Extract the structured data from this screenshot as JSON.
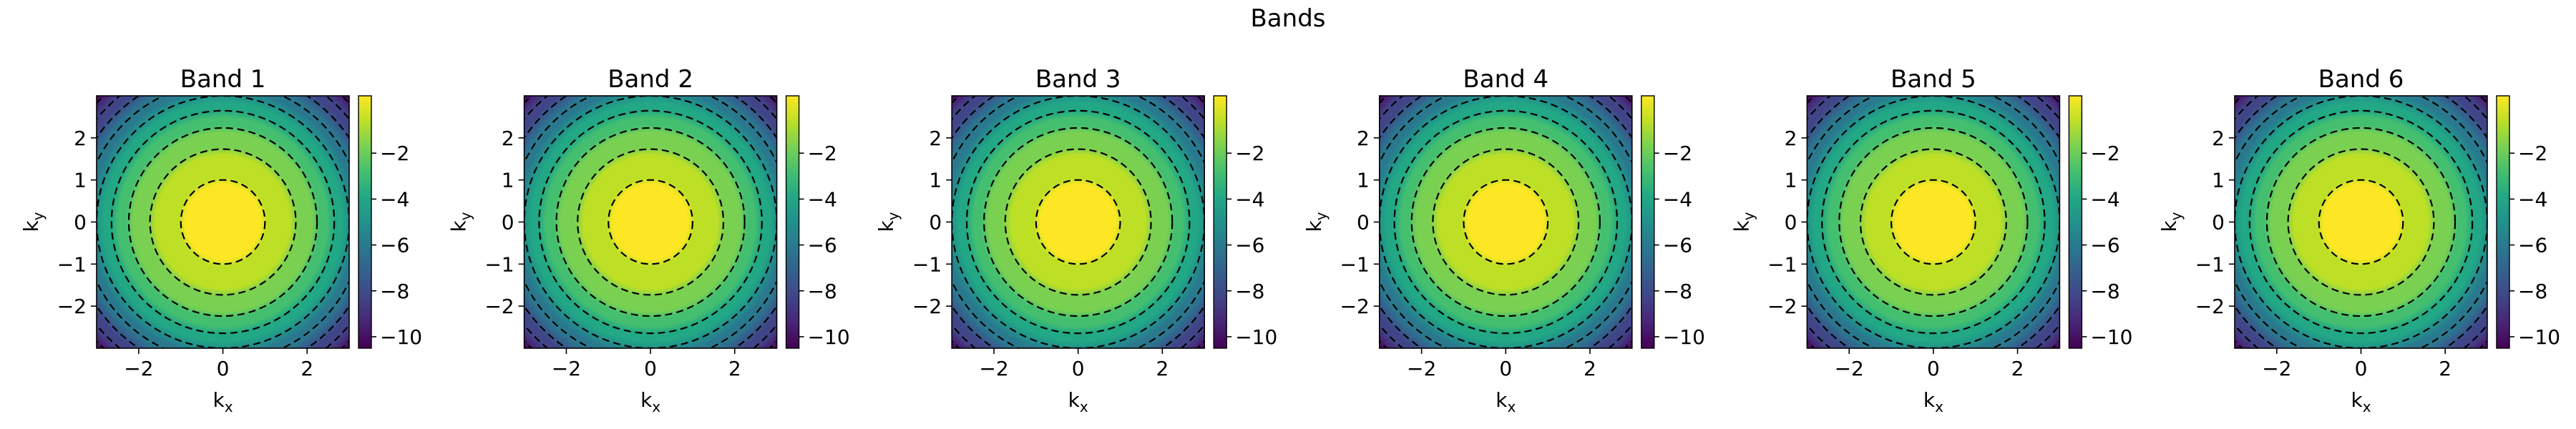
{
  "figure": {
    "suptitle": "Bands"
  },
  "chart_data": [
    {
      "type": "heatmap",
      "title": "Band 1",
      "xlabel": "k_x",
      "ylabel": "k_y",
      "xlim": [
        -3.0,
        3.0
      ],
      "ylim": [
        -3.0,
        3.0
      ],
      "xticks": [
        -2,
        0,
        2
      ],
      "yticks": [
        -2,
        -1,
        0,
        1,
        2
      ],
      "function": "-(kx^2+ky^2)/2",
      "value_range": [
        -9.0,
        0.0
      ],
      "colorbar_ticks": [
        -10,
        -8,
        -6,
        -4,
        -2
      ],
      "colormap": "viridis",
      "contour_levels": [
        -8.5,
        -7.5,
        -6.5,
        -5.5,
        -4.5,
        -3.5,
        -2.5,
        -1.5,
        -0.5
      ],
      "contour_style": "dashed black"
    },
    {
      "type": "heatmap",
      "title": "Band 2",
      "xlabel": "k_x",
      "ylabel": "k_y",
      "xlim": [
        -3.0,
        3.0
      ],
      "ylim": [
        -3.0,
        3.0
      ],
      "xticks": [
        -2,
        0,
        2
      ],
      "yticks": [
        -2,
        -1,
        0,
        1,
        2
      ],
      "function": "-(kx^2+ky^2)/2",
      "value_range": [
        -9.0,
        0.0
      ],
      "colorbar_ticks": [
        -10,
        -8,
        -6,
        -4,
        -2
      ],
      "colormap": "viridis",
      "contour_levels": [
        -8.5,
        -7.5,
        -6.5,
        -5.5,
        -4.5,
        -3.5,
        -2.5,
        -1.5,
        -0.5
      ],
      "contour_style": "dashed black"
    },
    {
      "type": "heatmap",
      "title": "Band 3",
      "xlabel": "k_x",
      "ylabel": "k_y",
      "xlim": [
        -3.0,
        3.0
      ],
      "ylim": [
        -3.0,
        3.0
      ],
      "xticks": [
        -2,
        0,
        2
      ],
      "yticks": [
        -2,
        -1,
        0,
        1,
        2
      ],
      "function": "-(kx^2+ky^2)/2",
      "value_range": [
        -9.0,
        0.0
      ],
      "colorbar_ticks": [
        -10,
        -8,
        -6,
        -4,
        -2
      ],
      "colormap": "viridis",
      "contour_levels": [
        -8.5,
        -7.5,
        -6.5,
        -5.5,
        -4.5,
        -3.5,
        -2.5,
        -1.5,
        -0.5
      ],
      "contour_style": "dashed black"
    },
    {
      "type": "heatmap",
      "title": "Band 4",
      "xlabel": "k_x",
      "ylabel": "k_y",
      "xlim": [
        -3.0,
        3.0
      ],
      "ylim": [
        -3.0,
        3.0
      ],
      "xticks": [
        -2,
        0,
        2
      ],
      "yticks": [
        -2,
        -1,
        0,
        1,
        2
      ],
      "function": "-(kx^2+ky^2)/2",
      "value_range": [
        -9.0,
        0.0
      ],
      "colorbar_ticks": [
        -10,
        -8,
        -6,
        -4,
        -2
      ],
      "colormap": "viridis",
      "contour_levels": [
        -8.5,
        -7.5,
        -6.5,
        -5.5,
        -4.5,
        -3.5,
        -2.5,
        -1.5,
        -0.5
      ],
      "contour_style": "dashed black"
    },
    {
      "type": "heatmap",
      "title": "Band 5",
      "xlabel": "k_x",
      "ylabel": "k_y",
      "xlim": [
        -3.0,
        3.0
      ],
      "ylim": [
        -3.0,
        3.0
      ],
      "xticks": [
        -2,
        0,
        2
      ],
      "yticks": [
        -2,
        -1,
        0,
        1,
        2
      ],
      "function": "-(kx^2+ky^2)/2",
      "value_range": [
        -9.0,
        0.0
      ],
      "colorbar_ticks": [
        -10,
        -8,
        -6,
        -4,
        -2
      ],
      "colormap": "viridis",
      "contour_levels": [
        -8.5,
        -7.5,
        -6.5,
        -5.5,
        -4.5,
        -3.5,
        -2.5,
        -1.5,
        -0.5
      ],
      "contour_style": "dashed black"
    },
    {
      "type": "heatmap",
      "title": "Band 6",
      "xlabel": "k_x",
      "ylabel": "k_y",
      "xlim": [
        -3.0,
        3.0
      ],
      "ylim": [
        -3.0,
        3.0
      ],
      "xticks": [
        -2,
        0,
        2
      ],
      "yticks": [
        -2,
        -1,
        0,
        1,
        2
      ],
      "function": "-(kx^2+ky^2)/2",
      "value_range": [
        -9.0,
        0.0
      ],
      "colorbar_ticks": [
        -10,
        -8,
        -6,
        -4,
        -2
      ],
      "colormap": "viridis",
      "contour_levels": [
        -8.5,
        -7.5,
        -6.5,
        -5.5,
        -4.5,
        -3.5,
        -2.5,
        -1.5,
        -0.5
      ],
      "contour_style": "dashed black"
    }
  ]
}
